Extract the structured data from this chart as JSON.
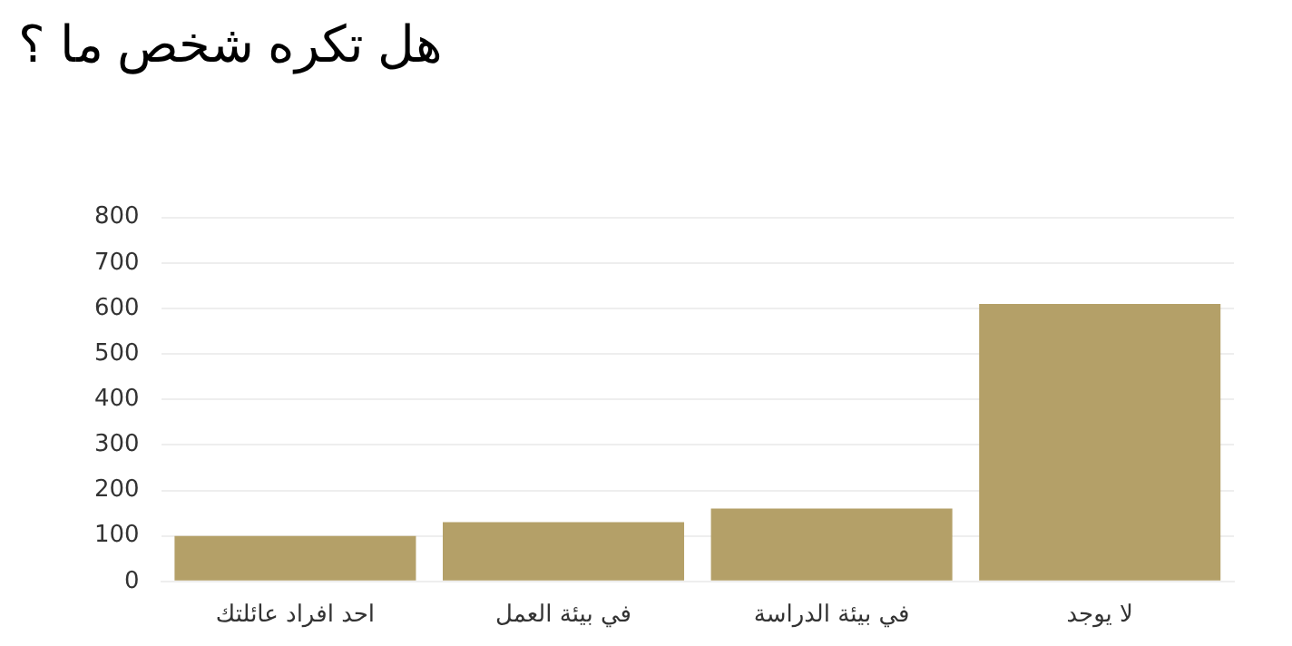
{
  "chart_data": {
    "type": "bar",
    "title": "هل تكره شخص ما ؟",
    "categories": [
      "احد افراد عائلتك",
      "في بيئة العمل",
      "في بيئة الدراسة",
      "لا يوجد"
    ],
    "values": [
      100,
      130,
      160,
      610
    ],
    "color": "#b4a068",
    "ylim": [
      0,
      800
    ],
    "yticks": [
      0,
      100,
      200,
      300,
      400,
      500,
      600,
      700,
      800
    ],
    "grid": "y"
  }
}
